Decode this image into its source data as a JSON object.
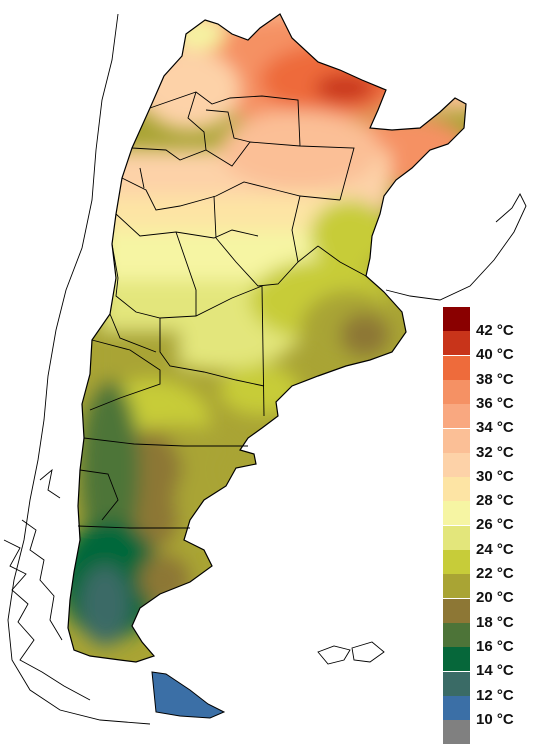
{
  "legend": {
    "items": [
      {
        "label": "42 °C",
        "color": "#8a0000"
      },
      {
        "label": "40 °C",
        "color": "#c8341a"
      },
      {
        "label": "38 °C",
        "color": "#ee6b3b"
      },
      {
        "label": "36 °C",
        "color": "#f59164"
      },
      {
        "label": "34 °C",
        "color": "#f9a880"
      },
      {
        "label": "32 °C",
        "color": "#fbbf96"
      },
      {
        "label": "30 °C",
        "color": "#fdd2a8"
      },
      {
        "label": "28 °C",
        "color": "#fde4a4"
      },
      {
        "label": "26 °C",
        "color": "#f6f5a3"
      },
      {
        "label": "24 °C",
        "color": "#e3e67b"
      },
      {
        "label": "22 °C",
        "color": "#c7cc39"
      },
      {
        "label": "20 °C",
        "color": "#a9a434"
      },
      {
        "label": "18 °C",
        "color": "#8d7735"
      },
      {
        "label": "16 °C",
        "color": "#4d7438"
      },
      {
        "label": "14 °C",
        "color": "#06673a"
      },
      {
        "label": "12 °C",
        "color": "#3a6b66"
      },
      {
        "label": "10 °C",
        "color": "#3b6fa6"
      },
      {
        "label": "",
        "color": "#808080"
      }
    ]
  }
}
